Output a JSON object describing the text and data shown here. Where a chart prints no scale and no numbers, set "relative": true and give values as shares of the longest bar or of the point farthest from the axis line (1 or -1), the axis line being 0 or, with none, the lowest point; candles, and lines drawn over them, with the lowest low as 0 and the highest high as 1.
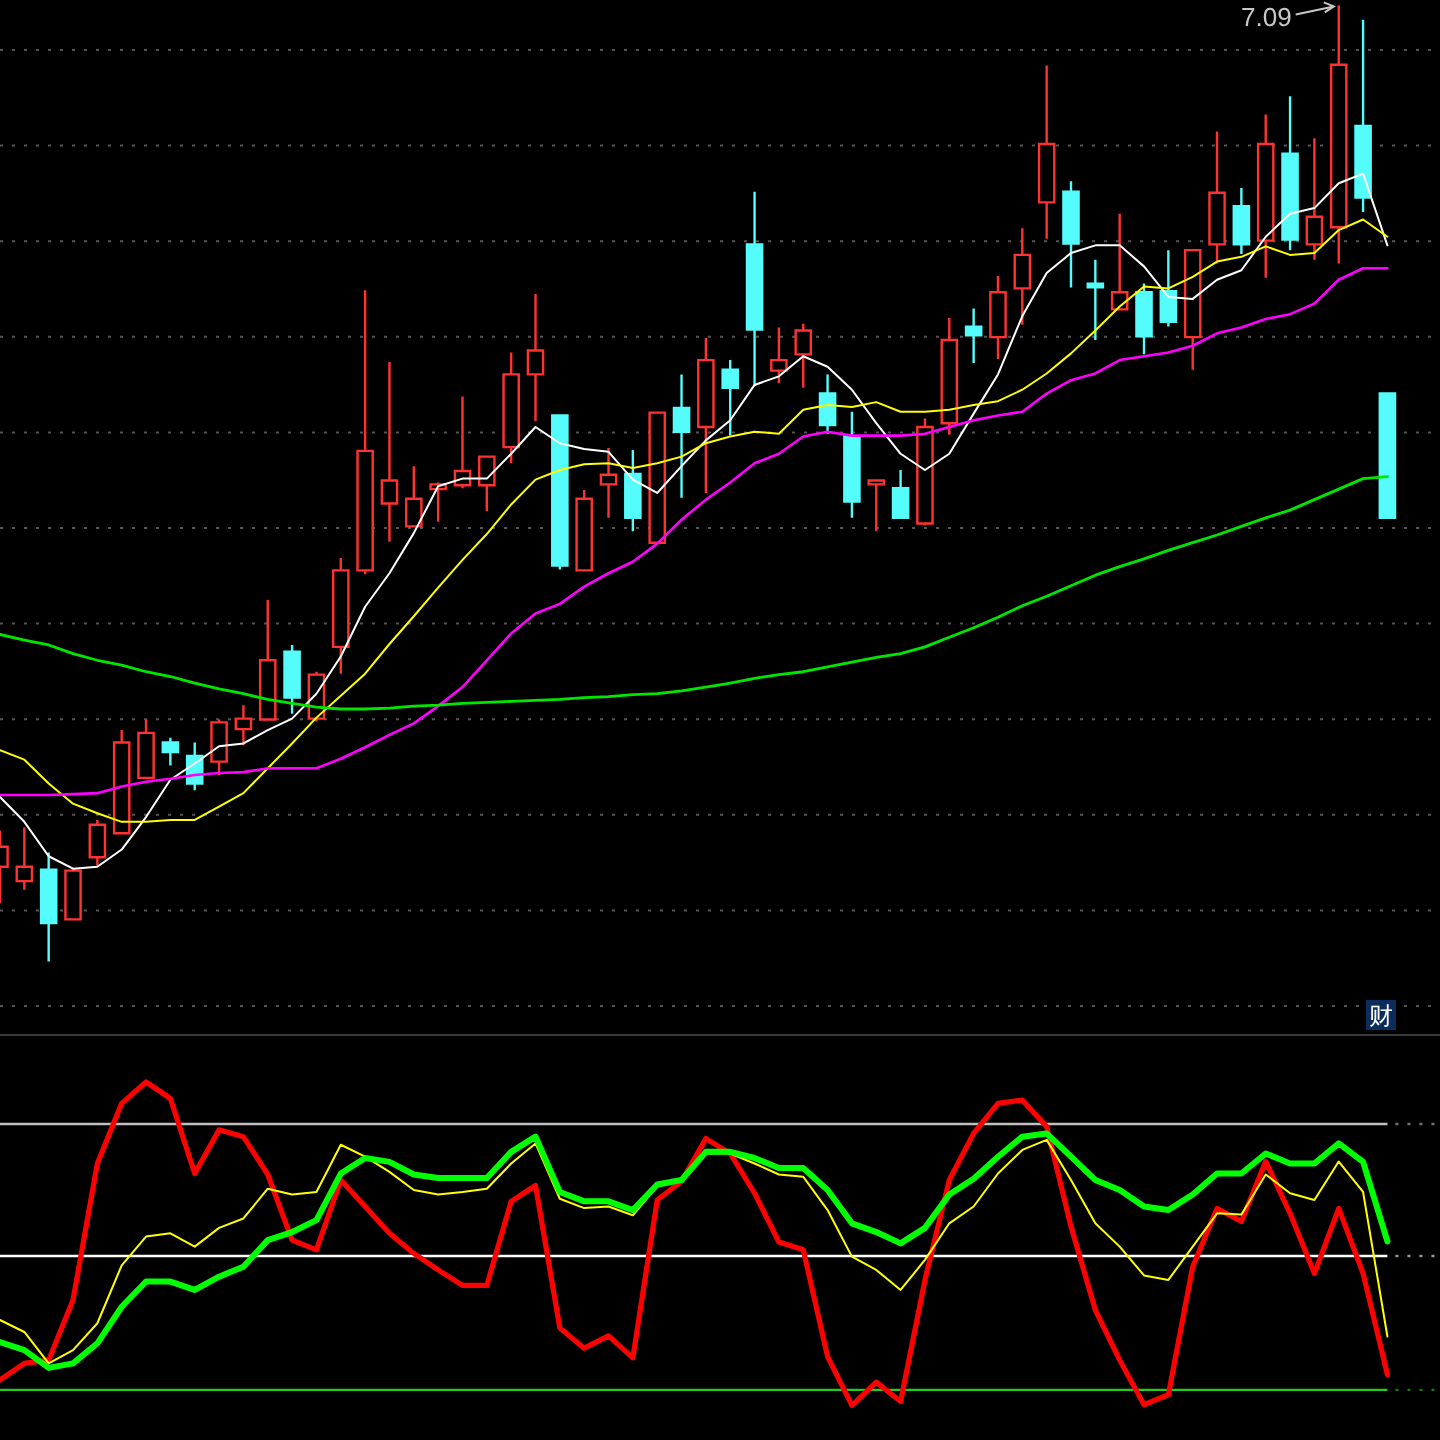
{
  "chart_data": [
    {
      "type": "candlestick",
      "relative": true,
      "grid": "y",
      "categories": [
        null,
        null,
        null,
        null,
        null,
        null,
        null,
        null,
        null,
        null,
        null,
        null,
        null,
        null,
        null,
        null,
        null,
        null,
        null,
        null,
        null,
        null,
        null,
        null,
        null,
        null,
        null,
        null,
        null,
        null,
        null,
        null,
        null,
        null,
        null,
        null,
        null,
        null,
        null,
        null,
        null,
        null,
        null,
        null,
        null,
        null,
        null,
        null,
        null,
        null,
        null,
        null,
        null,
        null,
        null,
        null,
        null,
        null
      ],
      "ohlc": [
        [
          0.099,
          0.137,
          0.061,
          0.12
        ],
        [
          0.084,
          0.14,
          0.075,
          0.099
        ],
        [
          0.096,
          0.114,
          0,
          0.04
        ],
        [
          0.044,
          0.098,
          0.044,
          0.095
        ],
        [
          0.109,
          0.148,
          0.1,
          0.143
        ],
        [
          0.134,
          0.242,
          0.133,
          0.229
        ],
        [
          0.192,
          0.253,
          0.192,
          0.239
        ],
        [
          0.229,
          0.234,
          0.205,
          0.219
        ],
        [
          0.215,
          0.229,
          0.179,
          0.186
        ],
        [
          0.209,
          0.253,
          0.195,
          0.25
        ],
        [
          0.243,
          0.268,
          0.226,
          0.254
        ],
        [
          0.253,
          0.378,
          0.253,
          0.315
        ],
        [
          0.324,
          0.331,
          0.259,
          0.276
        ],
        [
          0.254,
          0.303,
          0.251,
          0.3
        ],
        [
          0.329,
          0.422,
          0.301,
          0.409
        ],
        [
          0.409,
          0.702,
          0.405,
          0.534
        ],
        [
          0.479,
          0.627,
          0.439,
          0.503
        ],
        [
          0.455,
          0.518,
          0.455,
          0.484
        ],
        [
          0.494,
          0.501,
          0.46,
          0.499
        ],
        [
          0.498,
          0.591,
          0.495,
          0.513
        ],
        [
          0.498,
          0.528,
          0.471,
          0.528
        ],
        [
          0.538,
          0.637,
          0.521,
          0.614
        ],
        [
          0.614,
          0.698,
          0.565,
          0.639
        ],
        [
          0.571,
          0.571,
          0.41,
          0.414
        ],
        [
          0.409,
          0.493,
          0.409,
          0.484
        ],
        [
          0.499,
          0.537,
          0.464,
          0.509
        ],
        [
          0.51,
          0.535,
          0.45,
          0.464
        ],
        [
          0.438,
          0.574,
          0.438,
          0.574
        ],
        [
          0.579,
          0.614,
          0.485,
          0.554
        ],
        [
          0.559,
          0.652,
          0.49,
          0.629
        ],
        [
          0.619,
          0.629,
          0.55,
          0.6
        ],
        [
          0.75,
          0.805,
          0.602,
          0.661
        ],
        [
          0.618,
          0.663,
          0.605,
          0.629
        ],
        [
          0.635,
          0.667,
          0.6,
          0.66
        ],
        [
          0.594,
          0.614,
          0.552,
          0.561
        ],
        [
          0.549,
          0.575,
          0.464,
          0.481
        ],
        [
          0.499,
          0.503,
          0.45,
          0.503
        ],
        [
          0.495,
          0.514,
          0.464,
          0.464
        ],
        [
          0.458,
          0.568,
          0.456,
          0.559
        ],
        [
          0.563,
          0.673,
          0.551,
          0.65
        ],
        [
          0.664,
          0.683,
          0.626,
          0.655
        ],
        [
          0.653,
          0.717,
          0.63,
          0.7
        ],
        [
          0.704,
          0.767,
          0.666,
          0.739
        ],
        [
          0.794,
          0.937,
          0.756,
          0.855
        ],
        [
          0.805,
          0.816,
          0.705,
          0.751
        ],
        [
          0.709,
          0.734,
          0.65,
          0.705
        ],
        [
          0.682,
          0.782,
          0.682,
          0.7
        ],
        [
          0.7,
          0.709,
          0.635,
          0.654
        ],
        [
          0.701,
          0.744,
          0.664,
          0.669
        ],
        [
          0.653,
          0.744,
          0.619,
          0.744
        ],
        [
          0.75,
          0.868,
          0.73,
          0.804
        ],
        [
          0.79,
          0.809,
          0.74,
          0.75
        ],
        [
          0.754,
          0.886,
          0.715,
          0.855
        ],
        [
          0.845,
          0.905,
          0.744,
          0.755
        ],
        [
          0.75,
          0.861,
          0.734,
          0.779
        ],
        [
          0.768,
          1,
          0.73,
          0.938
        ],
        [
          0.874,
          0.985,
          0.784,
          0.799
        ],
        [
          0.594,
          0.594,
          0.464,
          0.464
        ]
      ],
      "colors": [
        "#ff3232",
        "#ff3232",
        "#54fcfc",
        "#ff3232",
        "#ff3232",
        "#ff3232",
        "#ff3232",
        "#54fcfc",
        "#54fcfc",
        "#ff3232",
        "#ff3232",
        "#ff3232",
        "#54fcfc",
        "#ff3232",
        "#ff3232",
        "#ff3232",
        "#ff3232",
        "#ff3232",
        "#ff3232",
        "#ff3232",
        "#ff3232",
        "#ff3232",
        "#ff3232",
        "#54fcfc",
        "#ff3232",
        "#ff3232",
        "#54fcfc",
        "#ff3232",
        "#54fcfc",
        "#ff3232",
        "#54fcfc",
        "#54fcfc",
        "#ff3232",
        "#ff3232",
        "#54fcfc",
        "#54fcfc",
        "#ff3232",
        "#54fcfc",
        "#ff3232",
        "#ff3232",
        "#54fcfc",
        "#ff3232",
        "#ff3232",
        "#ff3232",
        "#54fcfc",
        "#54fcfc",
        "#ff3232",
        "#54fcfc",
        "#54fcfc",
        "#ff3232",
        "#ff3232",
        "#54fcfc",
        "#ff3232",
        "#54fcfc",
        "#ff3232",
        "#ff3232",
        "#54fcfc",
        "#54fcfc"
      ],
      "series": [
        {
          "type": "line",
          "color": "#ffffff",
          "values": [
            0.172,
            0.146,
            0.11,
            0.097,
            0.099,
            0.117,
            0.151,
            0.19,
            0.207,
            0.225,
            0.228,
            0.242,
            0.254,
            0.28,
            0.319,
            0.371,
            0.406,
            0.448,
            0.497,
            0.505,
            0.505,
            0.531,
            0.559,
            0.542,
            0.536,
            0.533,
            0.504,
            0.49,
            0.518,
            0.545,
            0.566,
            0.603,
            0.612,
            0.633,
            0.622,
            0.598,
            0.563,
            0.531,
            0.514,
            0.531,
            0.573,
            0.614,
            0.675,
            0.72,
            0.741,
            0.749,
            0.749,
            0.727,
            0.695,
            0.693,
            0.713,
            0.723,
            0.758,
            0.782,
            0.788,
            0.814,
            0.824,
            0.749
          ]
        },
        {
          "type": "line",
          "color": "#ffff00",
          "values": [
            0.221,
            0.211,
            0.186,
            0.165,
            0.155,
            0.146,
            0.146,
            0.148,
            0.148,
            0.162,
            0.176,
            0.202,
            0.228,
            0.255,
            0.278,
            0.301,
            0.332,
            0.361,
            0.391,
            0.42,
            0.447,
            0.478,
            0.504,
            0.514,
            0.52,
            0.521,
            0.516,
            0.521,
            0.528,
            0.542,
            0.549,
            0.554,
            0.552,
            0.577,
            0.582,
            0.58,
            0.585,
            0.575,
            0.575,
            0.577,
            0.582,
            0.586,
            0.598,
            0.615,
            0.636,
            0.66,
            0.685,
            0.706,
            0.704,
            0.716,
            0.732,
            0.737,
            0.748,
            0.739,
            0.741,
            0.765,
            0.776,
            0.758
          ]
        },
        {
          "type": "line",
          "color": "#ff00ff",
          "values": [
            0.174,
            0.174,
            0.174,
            0.175,
            0.176,
            0.183,
            0.188,
            0.191,
            0.195,
            0.197,
            0.198,
            0.202,
            0.202,
            0.202,
            0.212,
            0.224,
            0.237,
            0.249,
            0.267,
            0.287,
            0.315,
            0.343,
            0.364,
            0.374,
            0.392,
            0.406,
            0.418,
            0.437,
            0.462,
            0.483,
            0.501,
            0.521,
            0.531,
            0.549,
            0.554,
            0.55,
            0.55,
            0.55,
            0.552,
            0.559,
            0.566,
            0.571,
            0.575,
            0.594,
            0.608,
            0.615,
            0.629,
            0.633,
            0.637,
            0.644,
            0.657,
            0.663,
            0.672,
            0.677,
            0.688,
            0.713,
            0.725,
            0.725
          ]
        },
        {
          "type": "line",
          "color": "#00e600",
          "values": [
            0.342,
            0.336,
            0.331,
            0.322,
            0.315,
            0.31,
            0.303,
            0.298,
            0.291,
            0.285,
            0.28,
            0.274,
            0.27,
            0.266,
            0.264,
            0.264,
            0.265,
            0.267,
            0.268,
            0.27,
            0.271,
            0.272,
            0.273,
            0.274,
            0.276,
            0.277,
            0.279,
            0.28,
            0.283,
            0.287,
            0.291,
            0.296,
            0.3,
            0.303,
            0.308,
            0.313,
            0.318,
            0.322,
            0.329,
            0.339,
            0.349,
            0.36,
            0.372,
            0.382,
            0.393,
            0.404,
            0.413,
            0.421,
            0.43,
            0.438,
            0.446,
            0.455,
            0.464,
            0.472,
            0.483,
            0.494,
            0.505,
            0.507
          ]
        }
      ],
      "annotations": [
        "7.09",
        "财"
      ]
    },
    {
      "type": "line",
      "relative": true,
      "categories": [
        null,
        null,
        null,
        null,
        null,
        null,
        null,
        null,
        null,
        null,
        null,
        null,
        null,
        null,
        null,
        null,
        null,
        null,
        null,
        null,
        null,
        null,
        null,
        null,
        null,
        null,
        null,
        null,
        null,
        null,
        null,
        null,
        null,
        null,
        null,
        null,
        null,
        null,
        null,
        null,
        null,
        null,
        null,
        null,
        null,
        null,
        null,
        null,
        null,
        null,
        null,
        null,
        null,
        null,
        null,
        null,
        null,
        null
      ],
      "series": [
        {
          "color": "#ff0000",
          "values": [
            0.079,
            0.13,
            0.14,
            0.326,
            0.748,
            0.934,
            1,
            0.949,
            0.717,
            0.852,
            0.831,
            0.714,
            0.511,
            0.481,
            0.697,
            0.615,
            0.532,
            0.47,
            0.419,
            0.371,
            0.371,
            0.631,
            0.68,
            0.239,
            0.177,
            0.215,
            0.147,
            0.635,
            0.693,
            0.825,
            0.779,
            0.656,
            0.505,
            0.481,
            0.151,
            0,
            0.072,
            0.012,
            0.388,
            0.697,
            0.841,
            0.934,
            0.944,
            0.862,
            0.553,
            0.295,
            0.14,
            0.002,
            0.033,
            0.429,
            0.609,
            0.569,
            0.754,
            0.594,
            0.408,
            0.609,
            0.408,
            0.095
          ]
        },
        {
          "color": "#ffff00",
          "values": [
            0.264,
            0.227,
            0.13,
            0.171,
            0.254,
            0.433,
            0.522,
            0.532,
            0.491,
            0.549,
            0.578,
            0.67,
            0.652,
            0.66,
            0.806,
            0.769,
            0.722,
            0.666,
            0.652,
            0.66,
            0.67,
            0.748,
            0.81,
            0.639,
            0.61,
            0.615,
            0.588,
            0.677,
            0.697,
            0.779,
            0.779,
            0.748,
            0.714,
            0.707,
            0.604,
            0.46,
            0.419,
            0.357,
            0.45,
            0.563,
            0.615,
            0.717,
            0.79,
            0.821,
            0.697,
            0.563,
            0.491,
            0.402,
            0.388,
            0.491,
            0.594,
            0.59,
            0.714,
            0.656,
            0.635,
            0.754,
            0.66,
            0.213
          ]
        },
        {
          "color": "#00ff00",
          "values": [
            0.196,
            0.171,
            0.116,
            0.13,
            0.192,
            0.305,
            0.383,
            0.383,
            0.357,
            0.398,
            0.429,
            0.511,
            0.536,
            0.573,
            0.717,
            0.765,
            0.753,
            0.714,
            0.703,
            0.703,
            0.703,
            0.784,
            0.831,
            0.66,
            0.631,
            0.631,
            0.604,
            0.683,
            0.697,
            0.784,
            0.784,
            0.765,
            0.734,
            0.734,
            0.666,
            0.563,
            0.536,
            0.501,
            0.549,
            0.652,
            0.701,
            0.769,
            0.831,
            0.841,
            0.769,
            0.697,
            0.666,
            0.615,
            0.604,
            0.652,
            0.717,
            0.717,
            0.779,
            0.748,
            0.748,
            0.81,
            0.753,
            0.507
          ]
        }
      ],
      "ref_lines": [
        {
          "axis": "y",
          "value": 0.87,
          "color": "#c0c0c0"
        },
        {
          "axis": "y",
          "value": 0.462,
          "color": "#ffffff"
        },
        {
          "axis": "y",
          "value": 0.048,
          "color": "#22cc22"
        }
      ]
    }
  ]
}
